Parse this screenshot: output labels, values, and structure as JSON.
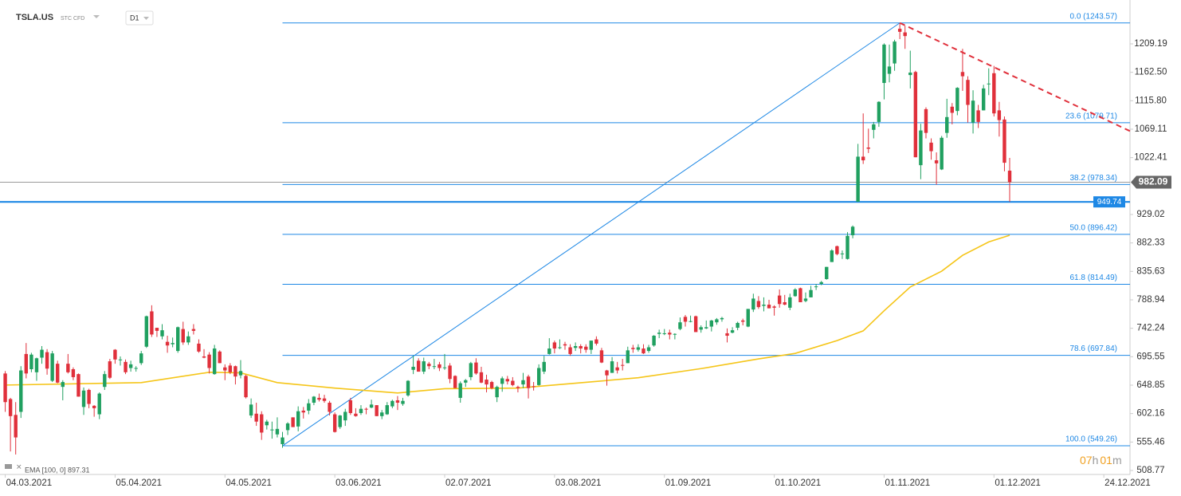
{
  "header": {
    "symbol": "TSLA.US",
    "market": "STC CFD",
    "interval": "D1"
  },
  "chart_data": {
    "type": "candlestick",
    "xlim": [
      -1,
      215
    ],
    "ylim": [
      502.2,
      1281.2
    ],
    "yticks": [
      {
        "value": 508.77,
        "label": "508.77"
      },
      555.46,
      602.16,
      648.85,
      695.55,
      742.24,
      788.94,
      835.63,
      882.33,
      929.02,
      1022.41,
      1069.11,
      {
        "value": 1115.8,
        "label": "1115.80"
      },
      {
        "value": 1162.5,
        "label": "1162.50"
      },
      1209.19
    ],
    "xticks": [
      {
        "value": 0,
        "label": "04.03.2021"
      },
      {
        "value": 21,
        "label": "05.04.2021"
      },
      {
        "value": 42,
        "label": "04.05.2021"
      },
      {
        "value": 63,
        "label": "03.06.2021"
      },
      {
        "value": 84,
        "label": "02.07.2021"
      },
      {
        "value": 105,
        "label": "03.08.2021"
      },
      {
        "value": 126,
        "label": "01.09.2021"
      },
      {
        "value": 147,
        "label": "01.10.2021"
      },
      {
        "value": 168,
        "label": "01.11.2021"
      },
      {
        "value": 189,
        "label": "01.12.2021"
      },
      {
        "value": 210,
        "label": "24.12.2021"
      }
    ],
    "up_color": "#20a060",
    "down_color": "#e0303b",
    "ohlc": [
      [
        668,
        672,
        605,
        621
      ],
      [
        626,
        628,
        540,
        598
      ],
      [
        600,
        621,
        535,
        563
      ],
      [
        605,
        680,
        595,
        673
      ],
      [
        700,
        718,
        660,
        668
      ],
      [
        675,
        702,
        670,
        699
      ],
      [
        670,
        694,
        656,
        693
      ],
      [
        694,
        713,
        684,
        707
      ],
      [
        703,
        708,
        666,
        676
      ],
      [
        656,
        705,
        654,
        701
      ],
      [
        684,
        689,
        652,
        653
      ],
      [
        646,
        657,
        624,
        654
      ],
      [
        684,
        700,
        668,
        670
      ],
      [
        675,
        678,
        657,
        662
      ],
      [
        667,
        668,
        630,
        630
      ],
      [
        613,
        645,
        600,
        640
      ],
      [
        641,
        643,
        611,
        618
      ],
      [
        615,
        616,
        597,
        611
      ],
      [
        601,
        637,
        593,
        635
      ],
      [
        646,
        672,
        641,
        667
      ],
      [
        688,
        692,
        659,
        661
      ],
      [
        707,
        708,
        684,
        691
      ],
      [
        690,
        696,
        681,
        691
      ],
      [
        687,
        691,
        667,
        670
      ],
      [
        677,
        689,
        671,
        683
      ],
      [
        677,
        680,
        671,
        677
      ],
      [
        685,
        705,
        682,
        701
      ],
      [
        712,
        763,
        710,
        762
      ],
      [
        770,
        780,
        728,
        732
      ],
      [
        743,
        743,
        728,
        738
      ],
      [
        729,
        749,
        724,
        739
      ],
      [
        720,
        730,
        702,
        714
      ],
      [
        716,
        727,
        711,
        718
      ],
      [
        705,
        745,
        702,
        744
      ],
      [
        741,
        753,
        715,
        719
      ],
      [
        719,
        737,
        715,
        729
      ],
      [
        741,
        749,
        732,
        738
      ],
      [
        717,
        724,
        702,
        704
      ],
      [
        696,
        708,
        693,
        694
      ],
      [
        699,
        703,
        668,
        677
      ],
      [
        667,
        715,
        666,
        709
      ],
      [
        704,
        706,
        685,
        685
      ],
      [
        678,
        683,
        657,
        673
      ],
      [
        681,
        685,
        667,
        670
      ],
      [
        680,
        681,
        650,
        663
      ],
      [
        665,
        690,
        660,
        672
      ],
      [
        664,
        666,
        627,
        629
      ],
      [
        599,
        627,
        595,
        617
      ],
      [
        602,
        620,
        582,
        589
      ],
      [
        601,
        606,
        559,
        571
      ],
      [
        583,
        592,
        576,
        589
      ],
      [
        575,
        589,
        561,
        576
      ],
      [
        568,
        596,
        563,
        577
      ],
      [
        552,
        572,
        546,
        563
      ],
      [
        575,
        588,
        567,
        586
      ],
      [
        596,
        596,
        580,
        580
      ],
      [
        581,
        614,
        573,
        606
      ],
      [
        607,
        613,
        594,
        604
      ],
      [
        607,
        626,
        601,
        619
      ],
      [
        620,
        631,
        616,
        630
      ],
      [
        628,
        635,
        622,
        625
      ],
      [
        627,
        633,
        620,
        623
      ],
      [
        620,
        623,
        599,
        605
      ],
      [
        601,
        604,
        571,
        572
      ],
      [
        580,
        600,
        577,
        599
      ],
      [
        591,
        610,
        582,
        605
      ],
      [
        624,
        628,
        600,
        603
      ],
      [
        602,
        611,
        597,
        598
      ],
      [
        603,
        616,
        600,
        610
      ],
      [
        610,
        612,
        601,
        609
      ],
      [
        612,
        625,
        611,
        617
      ],
      [
        616,
        616,
        598,
        598
      ],
      [
        598,
        608,
        593,
        604
      ],
      [
        601,
        621,
        600,
        616
      ],
      [
        614,
        625,
        611,
        623
      ],
      [
        624,
        631,
        608,
        620
      ],
      [
        618,
        628,
        615,
        623
      ],
      [
        632,
        657,
        630,
        656
      ],
      [
        674,
        697,
        667,
        679
      ],
      [
        689,
        693,
        671,
        671
      ],
      [
        671,
        694,
        667,
        688
      ],
      [
        684,
        687,
        675,
        680
      ],
      [
        679,
        692,
        675,
        680
      ],
      [
        683,
        687,
        672,
        677
      ],
      [
        678,
        700,
        674,
        678
      ],
      [
        681,
        685,
        652,
        659
      ],
      [
        664,
        665,
        644,
        644
      ],
      [
        628,
        655,
        620,
        652
      ],
      [
        653,
        659,
        646,
        657
      ],
      [
        662,
        687,
        657,
        685
      ],
      [
        686,
        693,
        666,
        668
      ],
      [
        670,
        679,
        652,
        653
      ],
      [
        658,
        666,
        637,
        650
      ],
      [
        654,
        656,
        642,
        644
      ],
      [
        629,
        648,
        621,
        646
      ],
      [
        651,
        663,
        638,
        660
      ],
      [
        659,
        664,
        650,
        655
      ],
      [
        656,
        662,
        647,
        649
      ],
      [
        646,
        648,
        637,
        644
      ],
      [
        650,
        669,
        644,
        657
      ],
      [
        663,
        666,
        627,
        644
      ],
      [
        647,
        654,
        640,
        646
      ],
      [
        649,
        683,
        648,
        677
      ],
      [
        671,
        697,
        667,
        687
      ],
      [
        700,
        726,
        699,
        709
      ],
      [
        719,
        722,
        701,
        709
      ],
      [
        711,
        724,
        708,
        711
      ],
      [
        716,
        720,
        707,
        714
      ],
      [
        711,
        716,
        697,
        700
      ],
      [
        710,
        719,
        705,
        713
      ],
      [
        713,
        716,
        701,
        709
      ],
      [
        712,
        716,
        702,
        707
      ],
      [
        707,
        722,
        700,
        722
      ],
      [
        724,
        729,
        714,
        717
      ],
      [
        706,
        710,
        685,
        686
      ],
      [
        673,
        674,
        648,
        665
      ],
      [
        669,
        695,
        669,
        688
      ],
      [
        678,
        687,
        668,
        673
      ],
      [
        682,
        692,
        673,
        681
      ],
      [
        685,
        712,
        685,
        706
      ],
      [
        710,
        715,
        702,
        708
      ],
      [
        707,
        716,
        704,
        711
      ],
      [
        709,
        716,
        700,
        701
      ],
      [
        705,
        715,
        702,
        711
      ],
      [
        714,
        731,
        712,
        730
      ],
      [
        733,
        740,
        726,
        735
      ],
      [
        734,
        741,
        731,
        734
      ],
      [
        735,
        740,
        724,
        732
      ],
      [
        732,
        734,
        724,
        733
      ],
      [
        741,
        760,
        739,
        752
      ],
      [
        761,
        764,
        745,
        753
      ],
      [
        753,
        763,
        752,
        754
      ],
      [
        762,
        763,
        736,
        736
      ],
      [
        740,
        747,
        735,
        744
      ],
      [
        742,
        755,
        741,
        744
      ],
      [
        745,
        756,
        737,
        755
      ],
      [
        752,
        759,
        748,
        757
      ],
      [
        757,
        761,
        753,
        759
      ],
      [
        734,
        742,
        719,
        730
      ],
      [
        735,
        744,
        734,
        739
      ],
      [
        743,
        753,
        739,
        751
      ],
      [
        755,
        758,
        747,
        753
      ],
      [
        745,
        774,
        744,
        774
      ],
      [
        773,
        799,
        769,
        791
      ],
      [
        787,
        795,
        774,
        777
      ],
      [
        779,
        793,
        770,
        781
      ],
      [
        781,
        789,
        775,
        775
      ],
      [
        778,
        780,
        763,
        776
      ],
      [
        796,
        806,
        776,
        782
      ],
      [
        785,
        797,
        780,
        781
      ],
      [
        776,
        799,
        772,
        793
      ],
      [
        795,
        808,
        794,
        806
      ],
      [
        808,
        809,
        787,
        785
      ],
      [
        787,
        801,
        785,
        791
      ],
      [
        793,
        812,
        793,
        805
      ],
      [
        810,
        815,
        805,
        811
      ],
      [
        815,
        820,
        813,
        818
      ],
      [
        823,
        843,
        822,
        843
      ],
      [
        851,
        872,
        851,
        870
      ],
      [
        877,
        878,
        862,
        864
      ],
      [
        865,
        870,
        856,
        865
      ],
      [
        856,
        900,
        855,
        894
      ],
      [
        895,
        911,
        890,
        909
      ],
      [
        950,
        1045,
        950,
        1024
      ],
      [
        1024,
        1095,
        1012,
        1018
      ],
      [
        1039,
        1070,
        1030,
        1037
      ],
      [
        1068,
        1081,
        1054,
        1077
      ],
      [
        1081,
        1115,
        1073,
        1114
      ],
      [
        1145,
        1210,
        1118,
        1208
      ],
      [
        1160,
        1208,
        1146,
        1172
      ],
      [
        1177,
        1216,
        1165,
        1213
      ],
      [
        1234,
        1243,
        1217,
        1229
      ],
      [
        1228,
        1239,
        1201,
        1222
      ],
      [
        1158,
        1198,
        1136,
        1162
      ],
      [
        1163,
        1165,
        1023,
        1023
      ],
      [
        1010,
        1078,
        987,
        1067
      ],
      [
        1102,
        1105,
        1054,
        1063
      ],
      [
        1047,
        1054,
        1019,
        1033
      ],
      [
        1018,
        1031,
        978,
        1013
      ],
      [
        1003,
        1058,
        1002,
        1055
      ],
      [
        1063,
        1119,
        1055,
        1089
      ],
      [
        1106,
        1112,
        1077,
        1096
      ],
      [
        1099,
        1138,
        1092,
        1137
      ],
      [
        1163,
        1201,
        1132,
        1156
      ],
      [
        1150,
        1156,
        1080,
        1109
      ],
      [
        1080,
        1133,
        1062,
        1116
      ],
      [
        1100,
        1109,
        1071,
        1081
      ],
      [
        1100,
        1142,
        1100,
        1136
      ],
      [
        1144,
        1169,
        1125,
        1144
      ],
      [
        1161,
        1173,
        1090,
        1095
      ],
      [
        1100,
        1114,
        1057,
        1084
      ],
      [
        1085,
        1090,
        1000,
        1014
      ],
      [
        1001,
        1022,
        950,
        982.09
      ]
    ],
    "ema": {
      "name": "EMA [100, 0] 897.31",
      "color": "#f5c518",
      "x": [
        0,
        26,
        39,
        45,
        52,
        63,
        75,
        84,
        98,
        113,
        121,
        133,
        144,
        151,
        159,
        164,
        168,
        173,
        179,
        183,
        188,
        192
      ],
      "values": [
        649,
        653,
        670,
        669,
        653,
        644,
        636,
        643,
        644,
        655,
        661,
        676,
        692,
        701,
        722,
        738,
        771,
        810,
        836,
        862,
        884,
        895
      ]
    },
    "fib_color": "#1e88e5",
    "fib_levels": [
      {
        "label": "0.0 (1243.57)",
        "value": 1243.57
      },
      {
        "label": "23.6 (1079.71)",
        "value": 1079.71
      },
      {
        "label": "38.2 (978.34)",
        "value": 978.34
      },
      {
        "label": "50.0 (896.42)",
        "value": 896.42
      },
      {
        "label": "61.8 (814.49)",
        "value": 814.49
      },
      {
        "label": "78.6 (697.84)",
        "value": 697.84
      },
      {
        "label": "100.0 (549.26)",
        "value": 549.26
      }
    ],
    "trend_line": {
      "x": [
        53,
        171
      ],
      "values": [
        549.26,
        1243.57
      ]
    },
    "resistance_line": {
      "color": "#e0303b",
      "x": [
        171,
        215
      ],
      "values": [
        1243.57,
        1066
      ]
    },
    "support_level": {
      "value": 949.74,
      "label": "949.74",
      "color": "#1e88e5"
    },
    "current_price": {
      "value": 982.09,
      "label": "982.09",
      "color": "#666666"
    },
    "timer": {
      "hours": "07",
      "hours_unit": "h",
      "minutes": "01",
      "minutes_unit": "m"
    }
  }
}
